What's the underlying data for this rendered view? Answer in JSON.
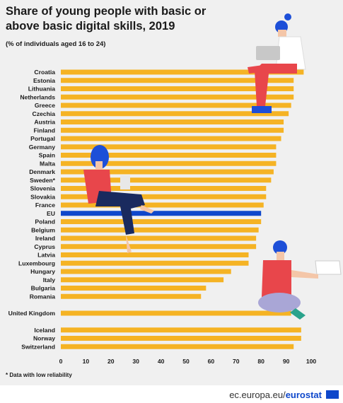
{
  "header": {
    "title": "Share of young people with basic or above basic digital skills, 2019",
    "subtitle": "(% of individuals aged 16 to 24)"
  },
  "footnote": "* Data with low reliability",
  "footer": {
    "source_prefix": "ec.europa.eu/",
    "source_brand": "eurostat"
  },
  "colors": {
    "bar": "#f5b324",
    "highlight": "#0e47cb",
    "background": "#f0f0f0"
  },
  "chart_data": {
    "type": "bar",
    "orientation": "horizontal",
    "xlim": [
      0,
      100
    ],
    "xticks": [
      "0",
      "10",
      "20",
      "30",
      "40",
      "50",
      "60",
      "70",
      "80",
      "90",
      "100"
    ],
    "grid": false,
    "categories": [
      "Croatia",
      "Estonia",
      "Lithuania",
      "Netherlands",
      "Greece",
      "Czechia",
      "Austria",
      "Finland",
      "Portugal",
      "Germany",
      "Spain",
      "Malta",
      "Denmark",
      "Sweden*",
      "Slovenia",
      "Slovakia",
      "France",
      "EU",
      "Poland",
      "Belgium",
      "Ireland",
      "Cyprus",
      "Latvia",
      "Luxembourg",
      "Hungary",
      "Italy",
      "Bulgaria",
      "Romania",
      "United Kingdom",
      "Iceland",
      "Norway",
      "Switzerland"
    ],
    "values": [
      97,
      93,
      93,
      93,
      92,
      91,
      89,
      89,
      88,
      86,
      86,
      86,
      85,
      84,
      82,
      82,
      81,
      80,
      80,
      79,
      78,
      78,
      75,
      75,
      68,
      65,
      58,
      56,
      92,
      96,
      96,
      93
    ],
    "highlight": [
      "EU"
    ],
    "groups": [
      [
        "Croatia",
        "Estonia",
        "Lithuania",
        "Netherlands",
        "Greece",
        "Czechia",
        "Austria",
        "Finland",
        "Portugal",
        "Germany",
        "Spain",
        "Malta",
        "Denmark",
        "Sweden*",
        "Slovenia",
        "Slovakia",
        "France",
        "EU",
        "Poland",
        "Belgium",
        "Ireland",
        "Cyprus",
        "Latvia",
        "Luxembourg",
        "Hungary",
        "Italy",
        "Bulgaria",
        "Romania"
      ],
      [
        "United Kingdom"
      ],
      [
        "Iceland",
        "Norway",
        "Switzerland"
      ]
    ]
  }
}
